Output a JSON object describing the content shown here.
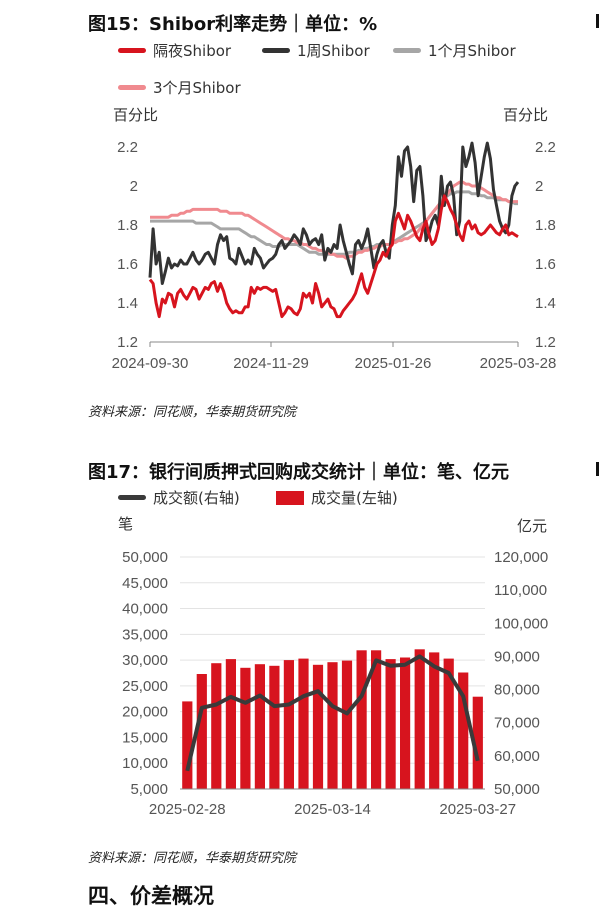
{
  "chart1": {
    "title": "图15：Shibor利率走势｜单位：%",
    "source": "资料来源：同花顺，华泰期货研究院",
    "chart_data": {
      "type": "line",
      "left_unit": "百分比",
      "right_unit": "百分比",
      "ylim": [
        1.2,
        2.2
      ],
      "yticks": [
        "1.2",
        "1.4",
        "1.6",
        "1.8",
        "2",
        "2.2"
      ],
      "xticks": [
        "2024-09-30",
        "2024-11-29",
        "2025-01-26",
        "2025-03-28"
      ],
      "series": [
        {
          "name": "隔夜Shibor",
          "color": "#d7141e",
          "values": [
            1.52,
            1.5,
            1.4,
            1.33,
            1.42,
            1.4,
            1.45,
            1.44,
            1.38,
            1.45,
            1.47,
            1.44,
            1.42,
            1.45,
            1.48,
            1.47,
            1.42,
            1.45,
            1.48,
            1.47,
            1.5,
            1.51,
            1.46,
            1.5,
            1.46,
            1.4,
            1.37,
            1.35,
            1.36,
            1.35,
            1.35,
            1.38,
            1.38,
            1.48,
            1.45,
            1.48,
            1.47,
            1.48,
            1.48,
            1.47,
            1.46,
            1.47,
            1.4,
            1.33,
            1.35,
            1.38,
            1.37,
            1.35,
            1.34,
            1.37,
            1.45,
            1.43,
            1.45,
            1.4,
            1.5,
            1.45,
            1.38,
            1.4,
            1.42,
            1.38,
            1.37,
            1.33,
            1.33,
            1.36,
            1.38,
            1.4,
            1.42,
            1.45,
            1.5,
            1.55,
            1.48,
            1.45,
            1.5,
            1.55,
            1.6,
            1.62,
            1.66,
            1.64,
            1.68,
            1.7,
            1.82,
            1.86,
            1.82,
            1.78,
            1.85,
            1.82,
            1.78,
            1.74,
            1.72,
            1.78,
            1.82,
            1.75,
            1.7,
            1.72,
            1.78,
            1.88,
            1.95,
            1.92,
            1.88,
            1.85,
            1.8,
            1.75,
            1.72,
            1.8,
            1.82,
            1.78,
            1.8,
            1.76,
            1.75,
            1.76,
            1.78,
            1.8,
            1.78,
            1.76,
            1.75,
            1.78,
            1.8,
            1.75,
            1.76,
            1.75,
            1.74
          ]
        },
        {
          "name": "1周Shibor",
          "color": "#333333",
          "values": [
            1.53,
            1.78,
            1.6,
            1.66,
            1.5,
            1.56,
            1.63,
            1.58,
            1.6,
            1.59,
            1.62,
            1.6,
            1.6,
            1.63,
            1.66,
            1.62,
            1.6,
            1.62,
            1.65,
            1.66,
            1.63,
            1.6,
            1.7,
            1.75,
            1.72,
            1.74,
            1.63,
            1.62,
            1.6,
            1.68,
            1.64,
            1.6,
            1.62,
            1.6,
            1.68,
            1.65,
            1.63,
            1.58,
            1.6,
            1.62,
            1.63,
            1.65,
            1.7,
            1.72,
            1.68,
            1.7,
            1.72,
            1.75,
            1.73,
            1.7,
            1.78,
            1.75,
            1.7,
            1.72,
            1.73,
            1.7,
            1.75,
            1.62,
            1.68,
            1.66,
            1.7,
            1.68,
            1.8,
            1.72,
            1.66,
            1.6,
            1.55,
            1.7,
            1.72,
            1.68,
            1.72,
            1.78,
            1.68,
            1.58,
            1.65,
            1.7,
            1.72,
            1.66,
            1.63,
            1.8,
            1.9,
            2.15,
            2.05,
            2.18,
            2.2,
            2.1,
            1.92,
            2.08,
            2.1,
            1.95,
            1.72,
            1.76,
            1.82,
            1.85,
            1.8,
            2.05,
            1.9,
            2.0,
            2.02,
            1.95,
            1.75,
            1.82,
            2.2,
            2.1,
            2.15,
            2.22,
            2.12,
            1.95,
            2.05,
            2.15,
            2.22,
            2.14,
            1.98,
            1.9,
            1.82,
            1.78,
            1.76,
            1.8,
            1.95,
            2.0,
            2.02
          ]
        },
        {
          "name": "1个月Shibor",
          "color": "#a6a6a6",
          "values": [
            1.82,
            1.82,
            1.82,
            1.82,
            1.82,
            1.82,
            1.82,
            1.82,
            1.82,
            1.82,
            1.82,
            1.82,
            1.82,
            1.82,
            1.82,
            1.81,
            1.81,
            1.81,
            1.81,
            1.81,
            1.81,
            1.8,
            1.79,
            1.78,
            1.78,
            1.78,
            1.78,
            1.78,
            1.78,
            1.78,
            1.77,
            1.76,
            1.75,
            1.74,
            1.74,
            1.73,
            1.72,
            1.71,
            1.7,
            1.7,
            1.69,
            1.69,
            1.69,
            1.7,
            1.7,
            1.7,
            1.7,
            1.7,
            1.7,
            1.69,
            1.68,
            1.67,
            1.66,
            1.66,
            1.66,
            1.65,
            1.65,
            1.65,
            1.65,
            1.65,
            1.65,
            1.65,
            1.65,
            1.65,
            1.65,
            1.66,
            1.66,
            1.66,
            1.67,
            1.67,
            1.68,
            1.68,
            1.69,
            1.69,
            1.7,
            1.7,
            1.7,
            1.7,
            1.7,
            1.71,
            1.72,
            1.73,
            1.74,
            1.75,
            1.76,
            1.77,
            1.78,
            1.79,
            1.8,
            1.81,
            1.82,
            1.84,
            1.86,
            1.88,
            1.9,
            1.92,
            1.94,
            1.95,
            1.96,
            1.96,
            1.97,
            1.97,
            1.97,
            1.97,
            1.97,
            1.96,
            1.96,
            1.96,
            1.95,
            1.95,
            1.94,
            1.94,
            1.94,
            1.93,
            1.93,
            1.93,
            1.93,
            1.92,
            1.92,
            1.91,
            1.91
          ]
        },
        {
          "name": "3个月Shibor",
          "color": "#f08a8f",
          "values": [
            1.84,
            1.84,
            1.84,
            1.84,
            1.84,
            1.84,
            1.84,
            1.85,
            1.85,
            1.85,
            1.86,
            1.86,
            1.87,
            1.87,
            1.88,
            1.88,
            1.88,
            1.88,
            1.88,
            1.88,
            1.88,
            1.88,
            1.88,
            1.87,
            1.87,
            1.87,
            1.86,
            1.86,
            1.86,
            1.86,
            1.86,
            1.85,
            1.85,
            1.84,
            1.83,
            1.82,
            1.81,
            1.8,
            1.79,
            1.78,
            1.77,
            1.76,
            1.75,
            1.74,
            1.73,
            1.73,
            1.72,
            1.72,
            1.71,
            1.71,
            1.7,
            1.7,
            1.69,
            1.68,
            1.68,
            1.67,
            1.67,
            1.66,
            1.66,
            1.65,
            1.65,
            1.64,
            1.64,
            1.64,
            1.63,
            1.64,
            1.64,
            1.65,
            1.66,
            1.66,
            1.67,
            1.67,
            1.68,
            1.68,
            1.69,
            1.69,
            1.7,
            1.7,
            1.7,
            1.71,
            1.71,
            1.72,
            1.72,
            1.73,
            1.73,
            1.74,
            1.75,
            1.76,
            1.78,
            1.8,
            1.82,
            1.84,
            1.86,
            1.88,
            1.9,
            1.92,
            1.94,
            1.96,
            1.98,
            2.0,
            2.01,
            2.02,
            2.02,
            2.01,
            2.01,
            2.0,
            2.0,
            2.0,
            1.99,
            1.98,
            1.97,
            1.96,
            1.95,
            1.94,
            1.94,
            1.93,
            1.93,
            1.92,
            1.92,
            1.92,
            1.92
          ]
        }
      ]
    }
  },
  "chart2": {
    "title": "图17：银行间质押式回购成交统计｜单位：笔、亿元",
    "source": "资料来源：同花顺，华泰期货研究院",
    "chart_data": {
      "type": "bar",
      "left_unit": "笔",
      "right_unit": "亿元",
      "left_ylim": [
        5000,
        50000
      ],
      "right_ylim": [
        50000,
        120000
      ],
      "left_ticks": [
        "5,000",
        "10,000",
        "15,000",
        "20,000",
        "25,000",
        "30,000",
        "35,000",
        "40,000",
        "45,000",
        "50,000"
      ],
      "right_ticks": [
        "50,000",
        "60,000",
        "70,000",
        "80,000",
        "90,000",
        "100,000",
        "110,000",
        "120,000"
      ],
      "xticks": [
        "2025-02-28",
        "2025-03-14",
        "2025-03-27"
      ],
      "series": [
        {
          "name": "成交额(右轴)",
          "type": "line",
          "axis": "right",
          "color": "#3a3a3a",
          "values": [
            55500,
            74500,
            75500,
            77800,
            76000,
            78200,
            75000,
            75500,
            78000,
            79500,
            75000,
            72800,
            78000,
            88800,
            87200,
            87500,
            90000,
            87000,
            85000,
            78000,
            58500
          ]
        },
        {
          "name": "成交量(左轴)",
          "type": "bar",
          "axis": "left",
          "color": "#d7141e",
          "values": [
            22000,
            27300,
            29400,
            30200,
            28500,
            29200,
            28900,
            30000,
            30300,
            29100,
            29600,
            29900,
            31900,
            31900,
            30200,
            30500,
            32100,
            31500,
            30300,
            27600,
            22900
          ]
        }
      ]
    }
  },
  "section_heading": "四、价差概况"
}
